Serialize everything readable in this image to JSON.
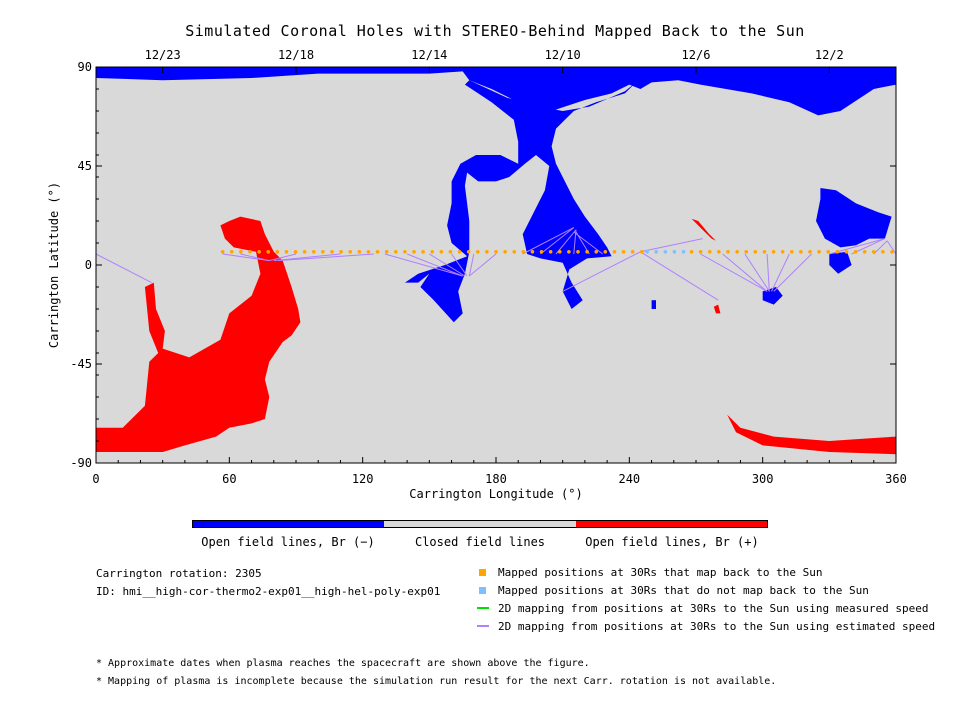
{
  "chart_data": {
    "type": "heatmap",
    "title": "Simulated Coronal Holes with STEREO-Behind Mapped Back to the Sun",
    "xlabel": "Carrington Longitude (°)",
    "ylabel": "Carrington Latitude (°)",
    "xlim": [
      0,
      360
    ],
    "ylim": [
      -90,
      90
    ],
    "x_ticks": [
      0,
      60,
      120,
      180,
      240,
      300,
      360
    ],
    "y_ticks": [
      -90,
      -45,
      0,
      45,
      90
    ],
    "top_axis": {
      "labels": [
        {
          "date": "12/23",
          "lon": 30
        },
        {
          "date": "12/18",
          "lon": 90
        },
        {
          "date": "12/14",
          "lon": 150
        },
        {
          "date": "12/10",
          "lon": 210
        },
        {
          "date": "12/6",
          "lon": 270
        },
        {
          "date": "12/2",
          "lon": 330
        }
      ]
    },
    "colorbar": [
      {
        "label": "Open field lines, Br (−)",
        "color": "#0000ff"
      },
      {
        "label": "Closed field lines",
        "color": "#d9d9d9"
      },
      {
        "label": "Open field lines, Br (+)",
        "color": "#ff0000"
      }
    ],
    "mapped_positions": {
      "latitude": 6,
      "maps_back_lon_ranges": [
        [
          57,
          248
        ],
        [
          268,
          360
        ]
      ],
      "no_map_lon_range": [
        248,
        268
      ],
      "color_maps_back": "#ffa500",
      "color_no_map": "#7fbfff"
    },
    "mapping_lines": [
      {
        "from": [
          0,
          5
        ],
        "to": [
          25,
          -8
        ]
      },
      {
        "from": [
          57,
          5
        ],
        "to": [
          78,
          2
        ]
      },
      {
        "from": [
          65,
          5
        ],
        "to": [
          78,
          2
        ]
      },
      {
        "from": [
          90,
          5
        ],
        "to": [
          78,
          2
        ]
      },
      {
        "from": [
          110,
          5
        ],
        "to": [
          80,
          2
        ]
      },
      {
        "from": [
          125,
          5
        ],
        "to": [
          82,
          2
        ]
      },
      {
        "from": [
          130,
          5
        ],
        "to": [
          165,
          -5
        ]
      },
      {
        "from": [
          140,
          5
        ],
        "to": [
          165,
          -5
        ]
      },
      {
        "from": [
          150,
          5
        ],
        "to": [
          166,
          -5
        ]
      },
      {
        "from": [
          160,
          5
        ],
        "to": [
          167,
          -5
        ]
      },
      {
        "from": [
          170,
          5
        ],
        "to": [
          168,
          -5
        ]
      },
      {
        "from": [
          180,
          5
        ],
        "to": [
          168,
          -5
        ]
      },
      {
        "from": [
          192,
          5
        ],
        "to": [
          215,
          17
        ]
      },
      {
        "from": [
          200,
          5
        ],
        "to": [
          215,
          17
        ]
      },
      {
        "from": [
          207,
          5
        ],
        "to": [
          216,
          16
        ]
      },
      {
        "from": [
          215,
          5
        ],
        "to": [
          216,
          16
        ]
      },
      {
        "from": [
          222,
          5
        ],
        "to": [
          216,
          15
        ]
      },
      {
        "from": [
          228,
          5
        ],
        "to": [
          215,
          15
        ]
      },
      {
        "from": [
          210,
          -12
        ],
        "to": [
          245,
          6
        ]
      },
      {
        "from": [
          245,
          6
        ],
        "to": [
          280,
          -16
        ]
      },
      {
        "from": [
          245,
          6
        ],
        "to": [
          273,
          12
        ]
      },
      {
        "from": [
          272,
          5
        ],
        "to": [
          302,
          -12
        ]
      },
      {
        "from": [
          282,
          5
        ],
        "to": [
          302,
          -12
        ]
      },
      {
        "from": [
          292,
          5
        ],
        "to": [
          303,
          -12
        ]
      },
      {
        "from": [
          302,
          5
        ],
        "to": [
          303,
          -12
        ]
      },
      {
        "from": [
          312,
          5
        ],
        "to": [
          304,
          -12
        ]
      },
      {
        "from": [
          322,
          5
        ],
        "to": [
          305,
          -12
        ]
      },
      {
        "from": [
          330,
          5
        ],
        "to": [
          355,
          12
        ]
      },
      {
        "from": [
          340,
          5
        ],
        "to": [
          355,
          12
        ]
      },
      {
        "from": [
          350,
          5
        ],
        "to": [
          356,
          11
        ]
      },
      {
        "from": [
          360,
          5
        ],
        "to": [
          356,
          11
        ]
      }
    ],
    "regions": [
      {
        "polarity": "negative",
        "color": "#0000ff",
        "lonlat": [
          [
            0,
            90
          ],
          [
            360,
            90
          ],
          [
            360,
            82
          ],
          [
            350,
            80
          ],
          [
            335,
            70
          ],
          [
            325,
            68
          ],
          [
            312,
            74
          ],
          [
            295,
            78
          ],
          [
            272,
            82
          ],
          [
            262,
            84
          ],
          [
            250,
            83
          ],
          [
            245,
            80
          ],
          [
            240,
            82
          ],
          [
            232,
            78
          ],
          [
            220,
            75
          ],
          [
            205,
            70
          ],
          [
            190,
            74
          ],
          [
            178,
            80
          ],
          [
            168,
            84
          ],
          [
            165,
            88
          ],
          [
            150,
            87
          ],
          [
            100,
            87
          ],
          [
            70,
            85
          ],
          [
            30,
            84
          ],
          [
            0,
            85
          ]
        ]
      },
      {
        "polarity": "negative",
        "color": "#0000ff",
        "lonlat": [
          [
            168,
            84
          ],
          [
            185,
            76
          ],
          [
            200,
            72
          ],
          [
            210,
            70
          ],
          [
            222,
            72
          ],
          [
            238,
            79
          ],
          [
            243,
            83
          ],
          [
            238,
            78
          ],
          [
            225,
            74
          ],
          [
            215,
            70
          ],
          [
            207,
            62
          ],
          [
            205,
            54
          ],
          [
            207,
            46
          ],
          [
            212,
            36
          ],
          [
            215,
            30
          ],
          [
            220,
            22
          ],
          [
            226,
            14
          ],
          [
            230,
            8
          ],
          [
            232,
            4
          ],
          [
            221,
            3
          ],
          [
            213,
            -2
          ],
          [
            210,
            -12
          ],
          [
            214,
            -20
          ],
          [
            219,
            -16
          ],
          [
            214,
            -8
          ],
          [
            210,
            1
          ],
          [
            200,
            3
          ],
          [
            194,
            5
          ],
          [
            192,
            14
          ],
          [
            197,
            24
          ],
          [
            202,
            34
          ],
          [
            204,
            45
          ],
          [
            198,
            50
          ],
          [
            193,
            46
          ],
          [
            186,
            40
          ],
          [
            180,
            38
          ],
          [
            172,
            38
          ],
          [
            167,
            42
          ],
          [
            166,
            36
          ],
          [
            168,
            20
          ],
          [
            168,
            6
          ],
          [
            166,
            -4
          ],
          [
            163,
            -12
          ],
          [
            165,
            -22
          ],
          [
            161,
            -26
          ],
          [
            152,
            -16
          ],
          [
            146,
            -10
          ],
          [
            150,
            -4
          ],
          [
            145,
            -8
          ],
          [
            139,
            -8
          ],
          [
            145,
            -4
          ],
          [
            157,
            0
          ],
          [
            167,
            4
          ],
          [
            160,
            10
          ],
          [
            158,
            18
          ],
          [
            160,
            28
          ],
          [
            160,
            38
          ],
          [
            164,
            46
          ],
          [
            171,
            50
          ],
          [
            182,
            50
          ],
          [
            190,
            46
          ],
          [
            190,
            56
          ],
          [
            188,
            66
          ],
          [
            178,
            74
          ],
          [
            172,
            78
          ],
          [
            166,
            82
          ]
        ]
      },
      {
        "polarity": "negative",
        "color": "#0000ff",
        "lonlat": [
          [
            326,
            35
          ],
          [
            333,
            34
          ],
          [
            342,
            28
          ],
          [
            352,
            24
          ],
          [
            358,
            22
          ],
          [
            355,
            12
          ],
          [
            348,
            12
          ],
          [
            342,
            9
          ],
          [
            335,
            8
          ],
          [
            328,
            12
          ],
          [
            324,
            20
          ],
          [
            326,
            30
          ]
        ]
      },
      {
        "polarity": "negative",
        "color": "#0000ff",
        "lonlat": [
          [
            330,
            5
          ],
          [
            338,
            6
          ],
          [
            340,
            0
          ],
          [
            334,
            -4
          ],
          [
            330,
            0
          ]
        ]
      },
      {
        "polarity": "negative",
        "color": "#0000ff",
        "lonlat": [
          [
            300,
            -12
          ],
          [
            306,
            -10
          ],
          [
            309,
            -14
          ],
          [
            305,
            -18
          ],
          [
            300,
            -16
          ]
        ]
      },
      {
        "polarity": "negative",
        "color": "#0000ff",
        "lonlat": [
          [
            250,
            -16
          ],
          [
            252,
            -16
          ],
          [
            252,
            -20
          ],
          [
            250,
            -20
          ]
        ]
      },
      {
        "polarity": "positive",
        "color": "#ff0000",
        "lonlat": [
          [
            0,
            -74
          ],
          [
            12,
            -74
          ],
          [
            22,
            -64
          ],
          [
            24,
            -44
          ],
          [
            28,
            -40
          ],
          [
            24,
            -30
          ],
          [
            22,
            -10
          ],
          [
            26,
            -8
          ],
          [
            27,
            -20
          ],
          [
            31,
            -30
          ],
          [
            30,
            -38
          ],
          [
            42,
            -42
          ],
          [
            56,
            -34
          ],
          [
            60,
            -22
          ],
          [
            70,
            -14
          ],
          [
            74,
            -4
          ],
          [
            72,
            6
          ],
          [
            62,
            8
          ],
          [
            58,
            12
          ],
          [
            56,
            18
          ],
          [
            60,
            20
          ],
          [
            65,
            22
          ],
          [
            74,
            20
          ],
          [
            76,
            14
          ],
          [
            80,
            6
          ],
          [
            84,
            2
          ],
          [
            88,
            -10
          ],
          [
            91,
            -20
          ],
          [
            92,
            -26
          ],
          [
            88,
            -32
          ],
          [
            84,
            -35
          ],
          [
            78,
            -44
          ],
          [
            76,
            -52
          ],
          [
            78,
            -60
          ],
          [
            76,
            -70
          ],
          [
            70,
            -72
          ],
          [
            60,
            -74
          ],
          [
            54,
            -78
          ],
          [
            40,
            -82
          ],
          [
            30,
            -85
          ],
          [
            0,
            -85
          ]
        ]
      },
      {
        "polarity": "positive",
        "color": "#ff0000",
        "lonlat": [
          [
            284,
            -68
          ],
          [
            290,
            -74
          ],
          [
            305,
            -78
          ],
          [
            330,
            -80
          ],
          [
            345,
            -79
          ],
          [
            360,
            -78
          ],
          [
            360,
            -86
          ],
          [
            330,
            -85
          ],
          [
            300,
            -82
          ],
          [
            288,
            -76
          ]
        ]
      },
      {
        "polarity": "positive",
        "color": "#ff0000",
        "lonlat": [
          [
            268,
            21
          ],
          [
            271,
            20
          ],
          [
            276,
            14
          ],
          [
            279,
            11
          ],
          [
            277,
            12
          ],
          [
            272,
            17
          ]
        ]
      },
      {
        "polarity": "positive",
        "color": "#ff0000",
        "lonlat": [
          [
            278,
            -19
          ],
          [
            280,
            -18
          ],
          [
            281,
            -22
          ],
          [
            279,
            -22
          ]
        ]
      }
    ]
  },
  "info": {
    "carr_rotation": "Carrington rotation: 2305",
    "run_id": "ID: hmi__high-cor-thermo2-exp01__high-hel-poly-exp01"
  },
  "legend": [
    {
      "kind": "square",
      "color": "#ffa500",
      "label": "Mapped positions at 30Rs that map back to the Sun"
    },
    {
      "kind": "square",
      "color": "#7fbfff",
      "label": "Mapped positions at 30Rs that do not map back to the Sun"
    },
    {
      "kind": "line",
      "color": "#00e000",
      "label": "2D mapping from positions at 30Rs to the Sun using measured speed"
    },
    {
      "kind": "line",
      "color": "#b080ff",
      "label": "2D mapping from positions at 30Rs to the Sun using estimated speed"
    }
  ],
  "notes": [
    "* Approximate dates when plasma reaches the spacecraft are shown above the figure.",
    "* Mapping of plasma is incomplete because the simulation run result for the next Carr. rotation is not available."
  ]
}
